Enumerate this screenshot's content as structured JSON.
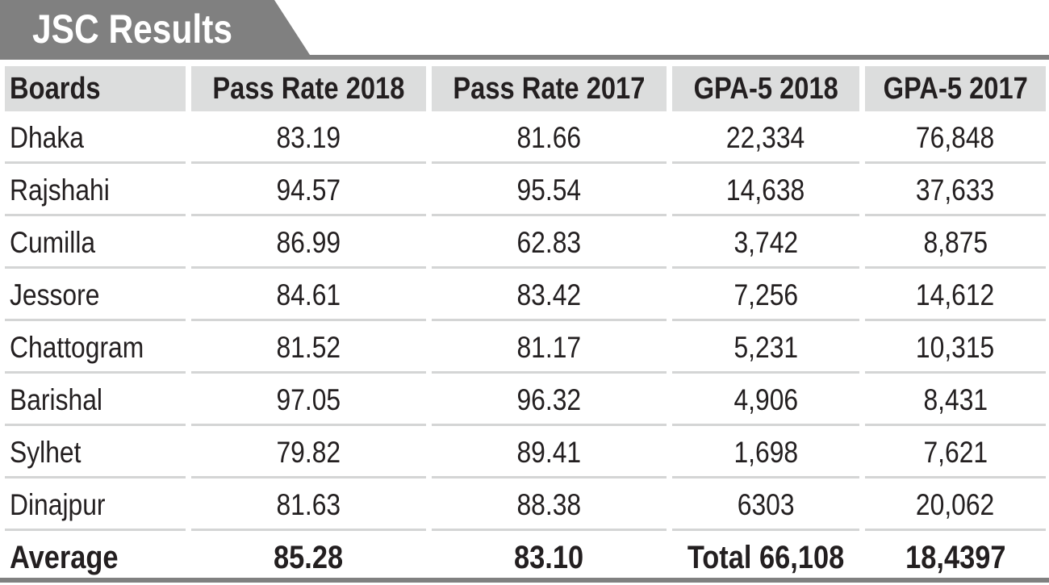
{
  "title": "JSC Results",
  "colors": {
    "title_tab": "#808080",
    "header_bg": "#dcdddd",
    "row_rule": "#d4d5d5",
    "text": "#231f20"
  },
  "table": {
    "headers": [
      "Boards",
      "Pass Rate 2018",
      "Pass Rate 2017",
      "GPA-5 2018",
      "GPA-5 2017"
    ],
    "rows": [
      [
        "Dhaka",
        "83.19",
        "81.66",
        "22,334",
        "76,848"
      ],
      [
        "Rajshahi",
        "94.57",
        "95.54",
        "14,638",
        "37,633"
      ],
      [
        "Cumilla",
        "86.99",
        "62.83",
        "3,742",
        "8,875"
      ],
      [
        "Jessore",
        "84.61",
        "83.42",
        "7,256",
        "14,612"
      ],
      [
        "Chattogram",
        "81.52",
        "81.17",
        "5,231",
        "10,315"
      ],
      [
        "Barishal",
        "97.05",
        "96.32",
        "4,906",
        "8,431"
      ],
      [
        "Sylhet",
        "79.82",
        "89.41",
        "1,698",
        "7,621"
      ],
      [
        "Dinajpur",
        "81.63",
        "88.38",
        "6303",
        "20,062"
      ]
    ],
    "summary": [
      "Average",
      "85.28",
      "83.10",
      "Total 66,108",
      "18,4397"
    ]
  }
}
